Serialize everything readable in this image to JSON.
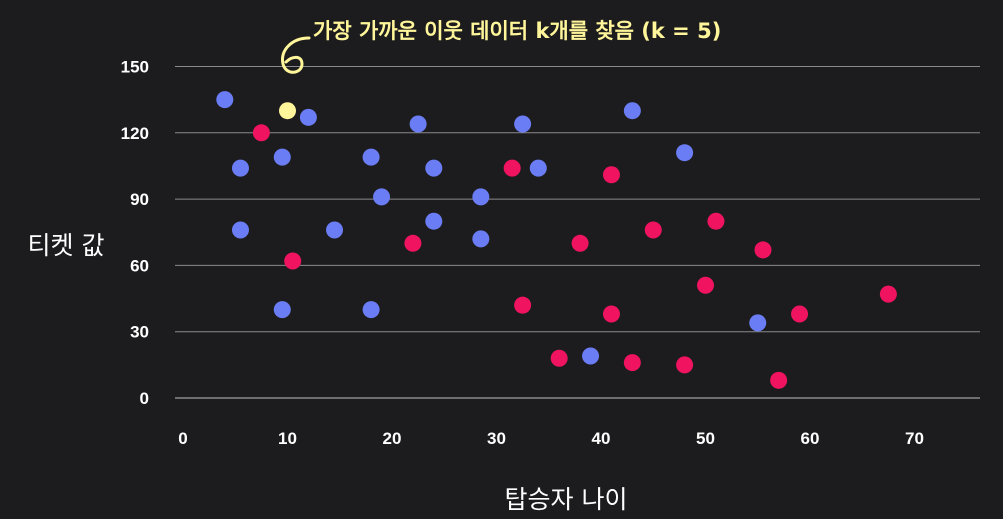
{
  "chart_data": {
    "type": "scatter",
    "xlabel": "탑승자 나이",
    "ylabel": "티켓 값",
    "xlim": [
      0,
      75
    ],
    "ylim": [
      0,
      150
    ],
    "x_ticks": [
      0,
      10,
      20,
      30,
      40,
      50,
      60,
      70
    ],
    "y_ticks": [
      0,
      30,
      60,
      90,
      120,
      150
    ],
    "grid": "horizontal",
    "annotation": "가장 가까운 이웃 데이터 k개를 찾음 (k = 5)",
    "colors": {
      "background": "#1c1c1e",
      "grid": "#8a8a8e",
      "blue": "#6b7df5",
      "red": "#f0135f",
      "highlight": "#fff59a"
    },
    "series": [
      {
        "name": "blue",
        "color": "#6b7df5",
        "points": [
          [
            4,
            135
          ],
          [
            5.5,
            104
          ],
          [
            5.5,
            76
          ],
          [
            9.5,
            109
          ],
          [
            12,
            127
          ],
          [
            9.5,
            40
          ],
          [
            14.5,
            76
          ],
          [
            18,
            109
          ],
          [
            19,
            91
          ],
          [
            18,
            40
          ],
          [
            22.5,
            124
          ],
          [
            24,
            104
          ],
          [
            24,
            80
          ],
          [
            28.5,
            91
          ],
          [
            28.5,
            72
          ],
          [
            32.5,
            124
          ],
          [
            34,
            104
          ],
          [
            39,
            19
          ],
          [
            43,
            130
          ],
          [
            48,
            111
          ],
          [
            55,
            34
          ]
        ]
      },
      {
        "name": "red",
        "color": "#f0135f",
        "points": [
          [
            7.5,
            120
          ],
          [
            10.5,
            62
          ],
          [
            22,
            70
          ],
          [
            31.5,
            104
          ],
          [
            32.5,
            42
          ],
          [
            36,
            18
          ],
          [
            38,
            70
          ],
          [
            41,
            101
          ],
          [
            41,
            38
          ],
          [
            43,
            16
          ],
          [
            45,
            76
          ],
          [
            48,
            15
          ],
          [
            50,
            51
          ],
          [
            51,
            80
          ],
          [
            55.5,
            67
          ],
          [
            57,
            8
          ],
          [
            59,
            38
          ],
          [
            67.5,
            47
          ]
        ]
      },
      {
        "name": "highlight",
        "color": "#fff59a",
        "points": [
          [
            10,
            130
          ]
        ]
      }
    ]
  }
}
